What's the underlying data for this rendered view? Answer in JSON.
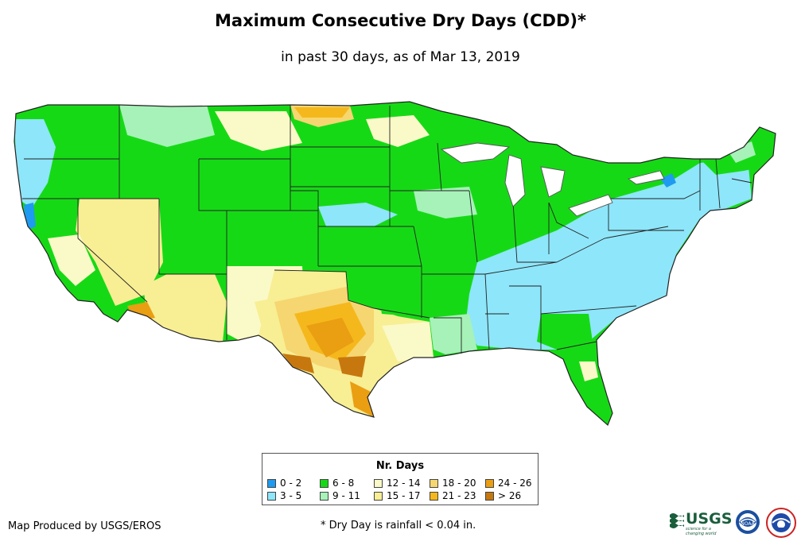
{
  "title": "Maximum Consecutive Dry Days (CDD)*",
  "subtitle": "in past 30 days, as of Mar 13, 2019",
  "legend": {
    "title": "Nr. Days",
    "items": [
      {
        "label": "0 - 2",
        "color": "#1e9bf0"
      },
      {
        "label": "3 - 5",
        "color": "#8ee6fa"
      },
      {
        "label": "6 - 8",
        "color": "#16d916"
      },
      {
        "label": "9 - 11",
        "color": "#a6f2b8"
      },
      {
        "label": "12 - 14",
        "color": "#fafac8"
      },
      {
        "label": "15 - 17",
        "color": "#f8ee94"
      },
      {
        "label": "18 - 20",
        "color": "#f6d670"
      },
      {
        "label": "21 - 23",
        "color": "#f5b81c"
      },
      {
        "label": "24 - 26",
        "color": "#ea9e12"
      },
      {
        "label": "> 26",
        "color": "#c6780e"
      }
    ]
  },
  "footer": {
    "credit": "Map Produced by USGS/EROS",
    "note": "* Dry Day is rainfall < 0.04 in."
  },
  "logos": {
    "usgs_text": "USGS",
    "usgs_tagline": "science for a changing world",
    "noaa_text": "NOAA"
  }
}
